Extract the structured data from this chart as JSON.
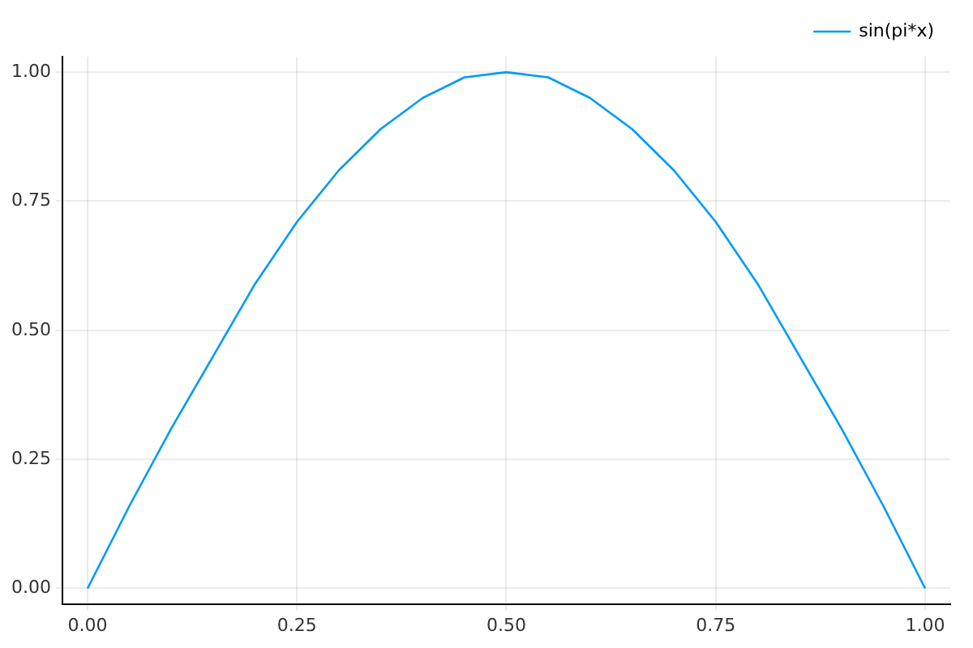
{
  "chart_data": {
    "type": "line",
    "x": [
      0,
      0.05,
      0.1,
      0.15,
      0.2,
      0.25,
      0.3,
      0.35,
      0.4,
      0.45,
      0.5,
      0.55,
      0.6,
      0.65,
      0.7,
      0.75,
      0.8,
      0.85,
      0.9,
      0.95,
      1
    ],
    "series": [
      {
        "name": "sin(pi*x)",
        "color": "#009af9",
        "values": [
          0,
          0.16,
          0.31,
          0.45,
          0.59,
          0.71,
          0.81,
          0.89,
          0.95,
          0.99,
          1.0,
          0.99,
          0.95,
          0.89,
          0.81,
          0.71,
          0.59,
          0.45,
          0.31,
          0.16,
          0
        ]
      }
    ],
    "xlim": [
      -0.03,
      1.03
    ],
    "ylim": [
      -0.03,
      1.03
    ],
    "xticks": [
      {
        "value": 0,
        "label": "0.00"
      },
      {
        "value": 0.25,
        "label": "0.25"
      },
      {
        "value": 0.5,
        "label": "0.50"
      },
      {
        "value": 0.75,
        "label": "0.75"
      },
      {
        "value": 1,
        "label": "1.00"
      }
    ],
    "yticks": [
      {
        "value": 0,
        "label": "0.00"
      },
      {
        "value": 0.25,
        "label": "0.25"
      },
      {
        "value": 0.5,
        "label": "0.50"
      },
      {
        "value": 0.75,
        "label": "0.75"
      },
      {
        "value": 1,
        "label": "1.00"
      }
    ],
    "grid": true,
    "legend": "top right",
    "marker": "none",
    "line_style": "solid"
  }
}
